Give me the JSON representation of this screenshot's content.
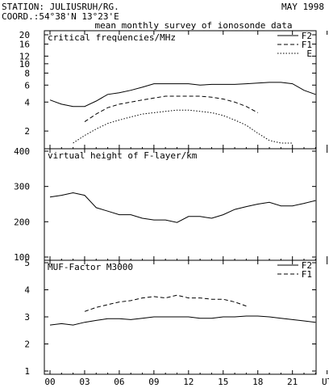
{
  "header": {
    "station": "STATION: JULIUSRUH/RG.",
    "coords": "COORD.:54°38'N 13°23'E",
    "date": "MAY 1998",
    "subtitle": "mean monthly survey of ionosonde data"
  },
  "chart_data": [
    {
      "type": "line",
      "title": "critical frequencies/MHz",
      "y_scale": "log",
      "ylim": [
        1.5,
        20
      ],
      "y_ticks": [
        2,
        4,
        6,
        8,
        10,
        12,
        16,
        20
      ],
      "x_ticks": [
        "00",
        "03",
        "06",
        "09",
        "12",
        "15",
        "18",
        "21",
        "UT"
      ],
      "xlim": [
        0,
        24
      ],
      "legend_position": "top-right",
      "series": [
        {
          "name": "F2",
          "style": "solid",
          "x": [
            0,
            1,
            2,
            3,
            4,
            5,
            6,
            7,
            8,
            9,
            10,
            11,
            12,
            13,
            14,
            15,
            16,
            17,
            18,
            19,
            20,
            21,
            22,
            23
          ],
          "y": [
            4.2,
            3.8,
            3.6,
            3.6,
            4.1,
            4.8,
            5.0,
            5.3,
            5.7,
            6.2,
            6.2,
            6.2,
            6.2,
            6.0,
            6.1,
            6.1,
            6.1,
            6.2,
            6.3,
            6.4,
            6.4,
            6.2,
            5.3,
            4.8
          ]
        },
        {
          "name": "F1",
          "style": "dashed",
          "x": [
            3,
            4,
            5,
            6,
            7,
            8,
            9,
            10,
            11,
            12,
            13,
            14,
            15,
            16,
            17,
            18
          ],
          "y": [
            2.5,
            3.0,
            3.5,
            3.8,
            4.0,
            4.2,
            4.4,
            4.6,
            4.6,
            4.6,
            4.6,
            4.5,
            4.3,
            4.0,
            3.6,
            3.1
          ]
        },
        {
          "name": "E",
          "style": "dotted",
          "x": [
            2,
            3,
            4,
            5,
            6,
            7,
            8,
            9,
            10,
            11,
            12,
            13,
            14,
            15,
            16,
            17,
            18,
            19,
            20,
            21
          ],
          "y": [
            1.5,
            1.8,
            2.1,
            2.4,
            2.6,
            2.8,
            3.0,
            3.1,
            3.2,
            3.3,
            3.3,
            3.2,
            3.1,
            2.9,
            2.6,
            2.3,
            1.9,
            1.6,
            1.5,
            1.5
          ]
        }
      ]
    },
    {
      "type": "line",
      "title": "virtual height of F-layer/km",
      "ylim": [
        100,
        400
      ],
      "y_ticks": [
        100,
        200,
        300,
        400
      ],
      "x_ticks": [
        "00",
        "03",
        "06",
        "09",
        "12",
        "15",
        "18",
        "21",
        "UT"
      ],
      "xlim": [
        0,
        24
      ],
      "series": [
        {
          "style": "solid",
          "x": [
            0,
            1,
            2,
            3,
            4,
            5,
            6,
            7,
            8,
            9,
            10,
            11,
            12,
            13,
            14,
            15,
            16,
            17,
            18,
            19,
            20,
            21,
            22,
            23
          ],
          "y": [
            270,
            275,
            282,
            275,
            240,
            230,
            220,
            220,
            210,
            205,
            205,
            198,
            215,
            215,
            210,
            220,
            235,
            243,
            250,
            255,
            245,
            245,
            252,
            260
          ]
        }
      ]
    },
    {
      "type": "line",
      "title": "MUF-Factor M3000",
      "ylim": [
        1,
        5
      ],
      "y_ticks": [
        1,
        2,
        3,
        4,
        5
      ],
      "x_ticks": [
        "00",
        "03",
        "06",
        "09",
        "12",
        "15",
        "18",
        "21",
        "UT"
      ],
      "xlim": [
        0,
        24
      ],
      "legend_position": "top-right",
      "series": [
        {
          "name": "F2",
          "style": "solid",
          "x": [
            0,
            1,
            2,
            3,
            4,
            5,
            6,
            7,
            8,
            9,
            10,
            11,
            12,
            13,
            14,
            15,
            16,
            17,
            18,
            19,
            20,
            21,
            22,
            23
          ],
          "y": [
            2.7,
            2.75,
            2.7,
            2.8,
            2.87,
            2.93,
            2.93,
            2.9,
            2.95,
            3.0,
            3.0,
            3.0,
            3.0,
            2.95,
            2.95,
            3.0,
            3.0,
            3.03,
            3.03,
            3.0,
            2.95,
            2.9,
            2.85,
            2.8
          ]
        },
        {
          "name": "F1",
          "style": "dashed",
          "x": [
            3,
            4,
            5,
            6,
            7,
            8,
            9,
            10,
            11,
            12,
            13,
            14,
            15,
            16,
            17
          ],
          "y": [
            3.2,
            3.35,
            3.45,
            3.55,
            3.6,
            3.7,
            3.75,
            3.7,
            3.8,
            3.7,
            3.7,
            3.65,
            3.65,
            3.55,
            3.4
          ]
        }
      ]
    }
  ]
}
